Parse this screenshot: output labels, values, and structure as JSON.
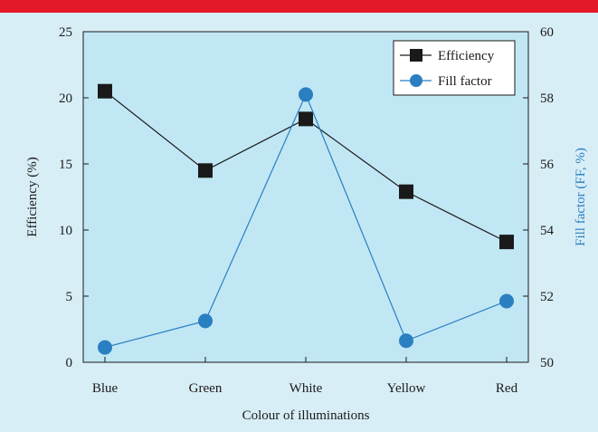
{
  "chart_data": {
    "type": "line",
    "categories": [
      "Blue",
      "Green",
      "White",
      "Yellow",
      "Red"
    ],
    "xlabel": "Colour of illuminations",
    "ylabel_left": "Efficiency (%)",
    "ylabel_right": "Fill factor (FF, %)",
    "ylim_left": [
      0,
      25
    ],
    "ylim_right": [
      50,
      60
    ],
    "yticks_left": [
      0,
      5,
      10,
      15,
      20,
      25
    ],
    "yticks_right": [
      50,
      52,
      54,
      56,
      58,
      60
    ],
    "legend_position": "top-right",
    "grid": false,
    "series": [
      {
        "name": "Efficiency",
        "axis": "left",
        "marker": "square",
        "color": "#1a1a1a",
        "values": [
          20.5,
          14.5,
          18.4,
          12.9,
          9.1
        ]
      },
      {
        "name": "Fill factor",
        "axis": "right",
        "marker": "circle",
        "color": "#2a7fc1",
        "values": [
          50.45,
          51.25,
          58.1,
          50.65,
          51.85
        ]
      }
    ]
  },
  "colors": {
    "plot_background": "#c1e7f5",
    "page_background": "#d8eef7",
    "top_bar": "#e5182a"
  }
}
